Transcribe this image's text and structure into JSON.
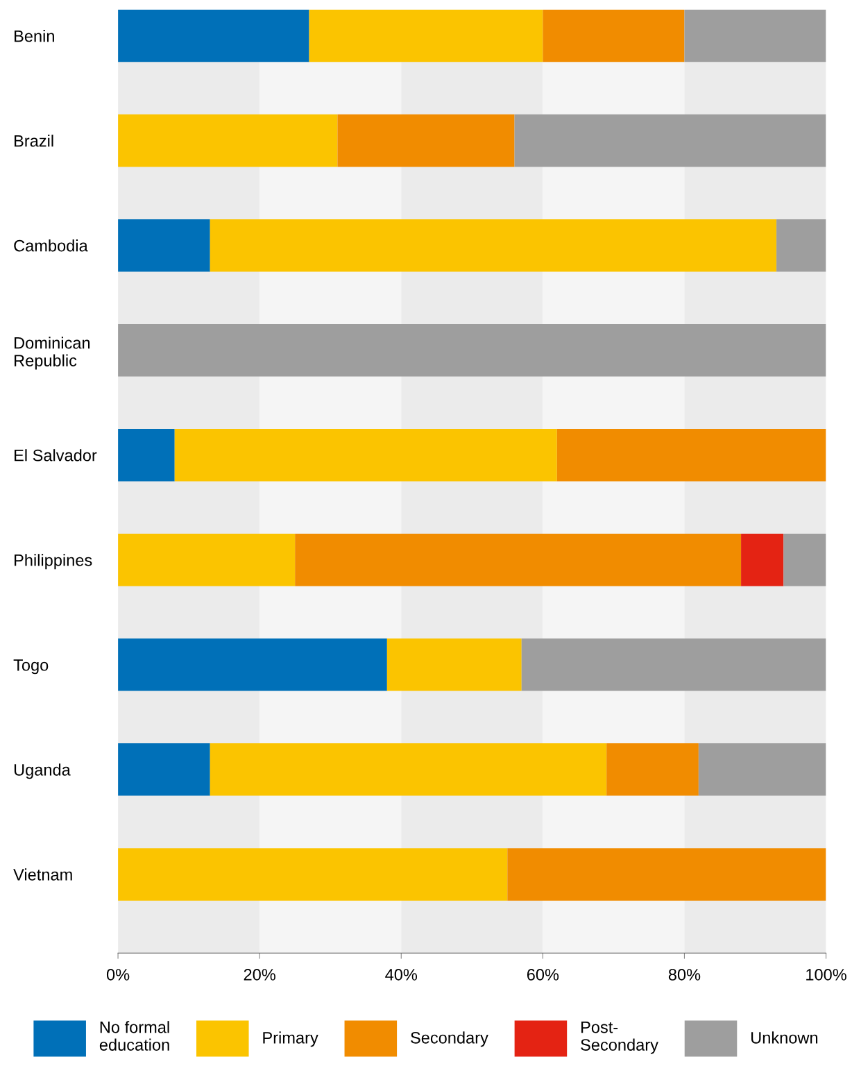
{
  "chart_data": {
    "type": "bar",
    "orientation": "horizontal",
    "stacked": true,
    "categories": [
      "Benin",
      "Brazil",
      "Cambodia",
      "Dominican\nRepublic",
      "El Salvador",
      "Philippines",
      "Togo",
      "Uganda",
      "Vietnam"
    ],
    "series": [
      {
        "name": "No formal\neducation",
        "color": "#0070b8",
        "values": [
          27,
          null,
          13,
          null,
          8,
          null,
          38,
          13,
          null
        ]
      },
      {
        "name": "Primary",
        "color": "#fbc400",
        "values": [
          33,
          31,
          80,
          null,
          54,
          25,
          19,
          56,
          55
        ]
      },
      {
        "name": "Secondary",
        "color": "#f18c00",
        "values": [
          20,
          25,
          null,
          null,
          38,
          63,
          null,
          13,
          45
        ]
      },
      {
        "name": "Post-\nSecondary",
        "color": "#e42313",
        "values": [
          null,
          null,
          null,
          null,
          null,
          6,
          null,
          null,
          null
        ]
      },
      {
        "name": "Unknown",
        "color": "#9e9e9e",
        "values": [
          20,
          44,
          7,
          100,
          null,
          6,
          43,
          18,
          null
        ]
      }
    ],
    "xlim": [
      0,
      100
    ],
    "xticks": [
      {
        "value": 0,
        "label": "0%"
      },
      {
        "value": 20,
        "label": "20%"
      },
      {
        "value": 40,
        "label": "40%"
      },
      {
        "value": 60,
        "label": "60%"
      },
      {
        "value": 80,
        "label": "80%"
      },
      {
        "value": 100,
        "label": "100%"
      }
    ],
    "bands": [
      {
        "axis": "x",
        "from": 0,
        "to": 20,
        "color": "#ebebeb"
      },
      {
        "axis": "x",
        "from": 20,
        "to": 40,
        "color": "#f5f5f5"
      },
      {
        "axis": "x",
        "from": 40,
        "to": 60,
        "color": "#ebebeb"
      },
      {
        "axis": "x",
        "from": 60,
        "to": 80,
        "color": "#f5f5f5"
      },
      {
        "axis": "x",
        "from": 80,
        "to": 100,
        "color": "#ebebeb"
      }
    ],
    "grid": false,
    "legend": "bottom"
  }
}
